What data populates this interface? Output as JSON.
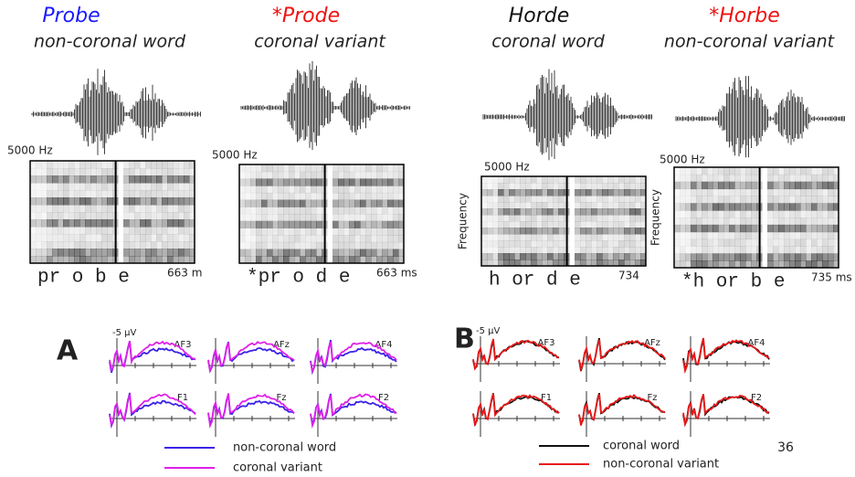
{
  "stimuli": [
    {
      "word": "Probe",
      "color": "#1a1aff",
      "description": "non-coronal word",
      "freq_label": "5000 Hz",
      "segments": "pr o b e",
      "duration": "663 m"
    },
    {
      "word": "*Prode",
      "color": "#ee1111",
      "description": "coronal variant",
      "freq_label": "5000 Hz",
      "segments": "*pr o d e",
      "duration": "663 ms"
    },
    {
      "word": "Horde",
      "color": "#111111",
      "description": "coronal word",
      "freq_label": "5000 Hz",
      "axis_label": "Frequency",
      "segments": "h or d e",
      "duration": "734"
    },
    {
      "word": "*Horbe",
      "color": "#ee1111",
      "description": "non-coronal variant",
      "freq_label": "5000 Hz",
      "axis_label": "Frequency",
      "segments": "*h or b e",
      "duration": "735 ms"
    }
  ],
  "erp_panels": [
    {
      "label": "A",
      "unit": "-5 µV",
      "electrodes": [
        "AF3",
        "AFz",
        "AF4",
        "F1",
        "Fz",
        "F2"
      ],
      "legend": [
        {
          "name": "non-coronal word",
          "color": "#3a22e8"
        },
        {
          "name": "coronal variant",
          "color": "#e020e8"
        }
      ]
    },
    {
      "label": "B",
      "unit": "-5 µV",
      "electrodes": [
        "AF3",
        "AFz",
        "AF4",
        "F1",
        "Fz",
        "F2"
      ],
      "legend": [
        {
          "name": "coronal word",
          "color": "#111111"
        },
        {
          "name": "non-coronal variant",
          "color": "#e81818"
        }
      ]
    }
  ],
  "page_number": "36"
}
